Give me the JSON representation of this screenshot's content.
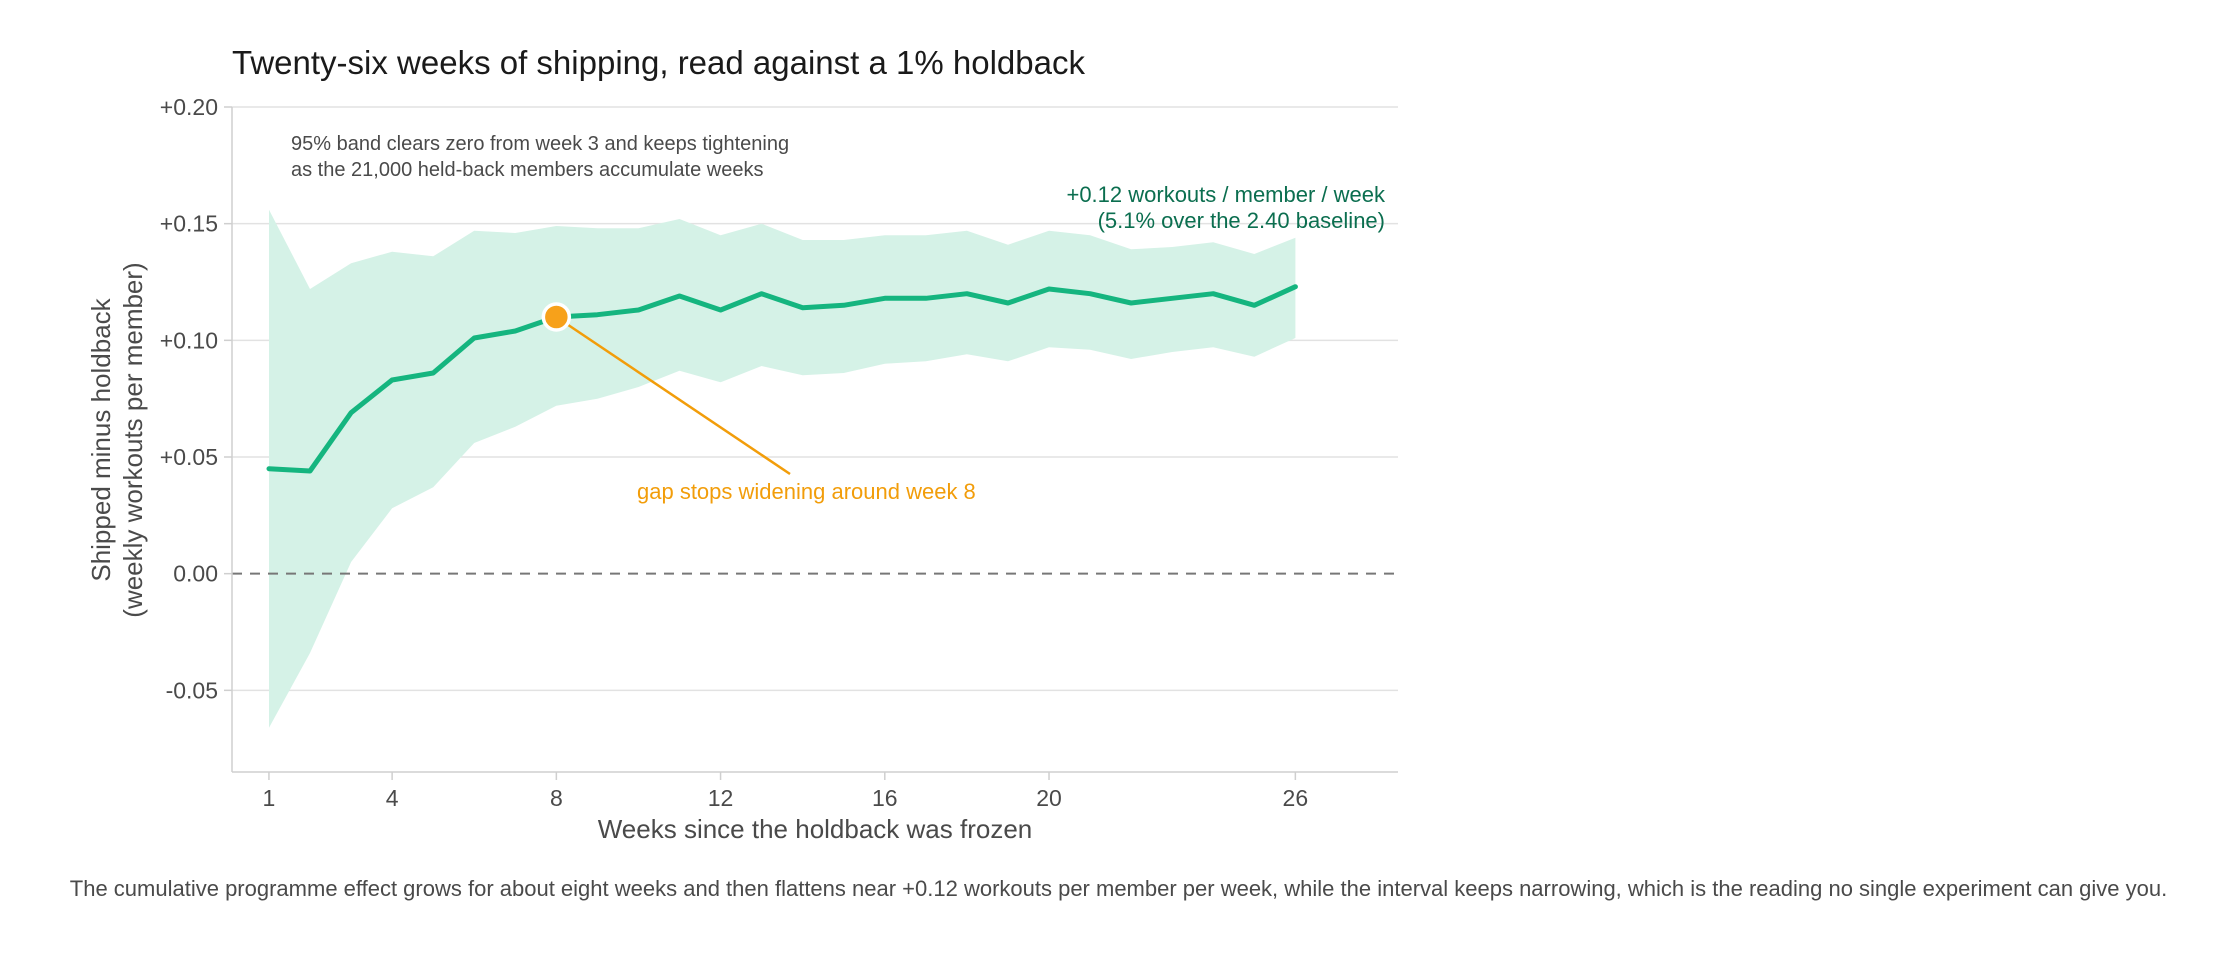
{
  "chart_data": {
    "type": "line",
    "title": "Twenty-six weeks of shipping, read against a 1% holdback",
    "xlabel": "Weeks since the holdback was frozen",
    "ylabel": [
      "Shipped minus holdback",
      "(weekly workouts per member)"
    ],
    "xlim": [
      0.1,
      28.5
    ],
    "ylim": [
      -0.085,
      0.2
    ],
    "x_ticks": [
      1,
      4,
      8,
      12,
      16,
      20,
      26
    ],
    "y_ticks": [
      {
        "value": 0.2,
        "label": "+0.20"
      },
      {
        "value": 0.15,
        "label": "+0.15"
      },
      {
        "value": 0.1,
        "label": "+0.10"
      },
      {
        "value": 0.05,
        "label": "+0.05"
      },
      {
        "value": 0.0,
        "label": "0.00"
      },
      {
        "value": -0.05,
        "label": "-0.05"
      }
    ],
    "grid": "horizontal",
    "reference_line": {
      "value": 0.0,
      "style": "dashed"
    },
    "series": [
      {
        "x": [
          1,
          2,
          3,
          4,
          5,
          6,
          7,
          8,
          9,
          10,
          11,
          12,
          13,
          14,
          15,
          16,
          17,
          18,
          19,
          20,
          21,
          22,
          23,
          24,
          25,
          26
        ],
        "values": [
          0.045,
          0.044,
          0.069,
          0.083,
          0.086,
          0.101,
          0.104,
          0.11,
          0.111,
          0.113,
          0.119,
          0.113,
          0.12,
          0.114,
          0.115,
          0.118,
          0.118,
          0.12,
          0.116,
          0.122,
          0.12,
          0.116,
          0.118,
          0.12,
          0.115,
          0.123
        ],
        "lower": [
          -0.066,
          -0.034,
          0.005,
          0.028,
          0.037,
          0.056,
          0.063,
          0.072,
          0.075,
          0.08,
          0.087,
          0.082,
          0.089,
          0.085,
          0.086,
          0.09,
          0.091,
          0.094,
          0.091,
          0.097,
          0.096,
          0.092,
          0.095,
          0.097,
          0.093,
          0.101
        ],
        "upper": [
          0.156,
          0.122,
          0.133,
          0.138,
          0.136,
          0.147,
          0.146,
          0.149,
          0.148,
          0.148,
          0.152,
          0.145,
          0.15,
          0.143,
          0.143,
          0.145,
          0.145,
          0.147,
          0.141,
          0.147,
          0.145,
          0.139,
          0.14,
          0.142,
          0.137,
          0.144
        ]
      }
    ],
    "highlight": {
      "x": 8,
      "y": 0.11
    },
    "annotations": {
      "band_note": [
        "95% band clears zero from week 3 and keeps tightening",
        "as the 21,000 held-back members accumulate weeks"
      ],
      "end_label": [
        "+0.12 workouts / member / week",
        "(5.1% over the 2.40 baseline)"
      ],
      "callout": "gap stops widening around week 8"
    },
    "colors": {
      "line": "#15b57f",
      "band": "#d5f2e7",
      "highlight": "#f7a11a",
      "callout": "#f29d0a",
      "end_label": "#0b6e4f",
      "grid": "#e2e2e2",
      "zero_line": "#777777"
    }
  },
  "caption": "The cumulative programme effect grows for about eight weeks and then flattens near +0.12 workouts per member per week, while the interval keeps narrowing, which is the reading no single experiment can give you."
}
